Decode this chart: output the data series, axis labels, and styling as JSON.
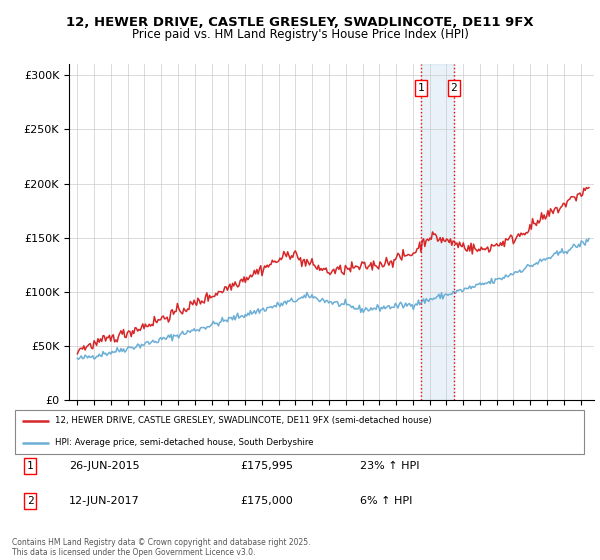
{
  "title": "12, HEWER DRIVE, CASTLE GRESLEY, SWADLINCOTE, DE11 9FX",
  "subtitle": "Price paid vs. HM Land Registry's House Price Index (HPI)",
  "legend_line1": "12, HEWER DRIVE, CASTLE GRESLEY, SWADLINCOTE, DE11 9FX (semi-detached house)",
  "legend_line2": "HPI: Average price, semi-detached house, South Derbyshire",
  "footer": "Contains HM Land Registry data © Crown copyright and database right 2025.\nThis data is licensed under the Open Government Licence v3.0.",
  "transaction1_date": "26-JUN-2015",
  "transaction1_price": "£175,995",
  "transaction1_hpi": "23% ↑ HPI",
  "transaction2_date": "12-JUN-2017",
  "transaction2_price": "£175,000",
  "transaction2_hpi": "6% ↑ HPI",
  "sale1_year": 2015.48,
  "sale2_year": 2017.44,
  "hpi_color": "#6baed6",
  "price_color": "#d62728",
  "ylim": [
    0,
    310000
  ],
  "yticks": [
    0,
    50000,
    100000,
    150000,
    200000,
    250000,
    300000
  ],
  "ytick_labels": [
    "£0",
    "£50K",
    "£100K",
    "£150K",
    "£200K",
    "£250K",
    "£300K"
  ],
  "xlim_start": 1994.5,
  "xlim_end": 2025.8
}
